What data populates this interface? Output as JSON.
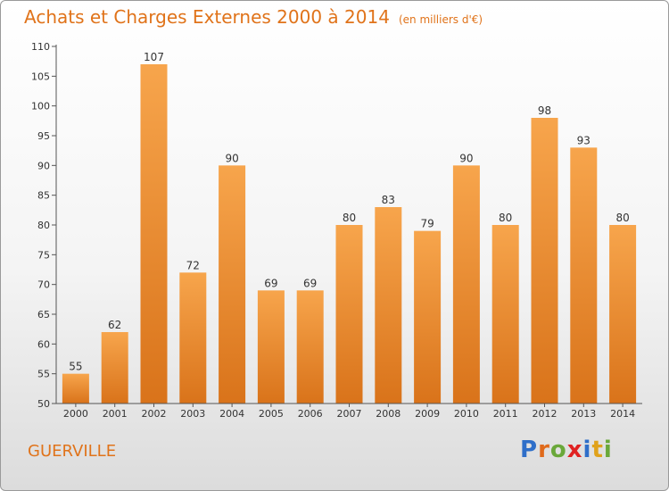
{
  "chart_data": {
    "type": "bar",
    "title": "Achats et Charges Externes 2000 à 2014",
    "subtitle": "(en milliers d'€)",
    "xlabel": "",
    "ylabel": "",
    "ylim": [
      50,
      110
    ],
    "yticks": [
      50,
      55,
      60,
      65,
      70,
      75,
      80,
      85,
      90,
      95,
      100,
      105,
      110
    ],
    "grid": false,
    "categories": [
      "2000",
      "2001",
      "2002",
      "2003",
      "2004",
      "2005",
      "2006",
      "2007",
      "2008",
      "2009",
      "2010",
      "2011",
      "2012",
      "2013",
      "2014"
    ],
    "values": [
      55,
      62,
      107,
      72,
      90,
      69,
      69,
      80,
      83,
      79,
      90,
      80,
      98,
      93,
      80
    ],
    "colors": {
      "bar_top": "#f7a54c",
      "bar_bottom": "#d9731a",
      "accent": "#e0731a"
    }
  },
  "commune": "GUERVILLE",
  "brand": {
    "letters": [
      "P",
      "r",
      "o",
      "x",
      "i",
      "t",
      "i"
    ],
    "colors": [
      "#2f6fc9",
      "#e06a1b",
      "#6aa83a",
      "#e02222",
      "#2f6fc9",
      "#e0a21b",
      "#6aa83a"
    ]
  }
}
